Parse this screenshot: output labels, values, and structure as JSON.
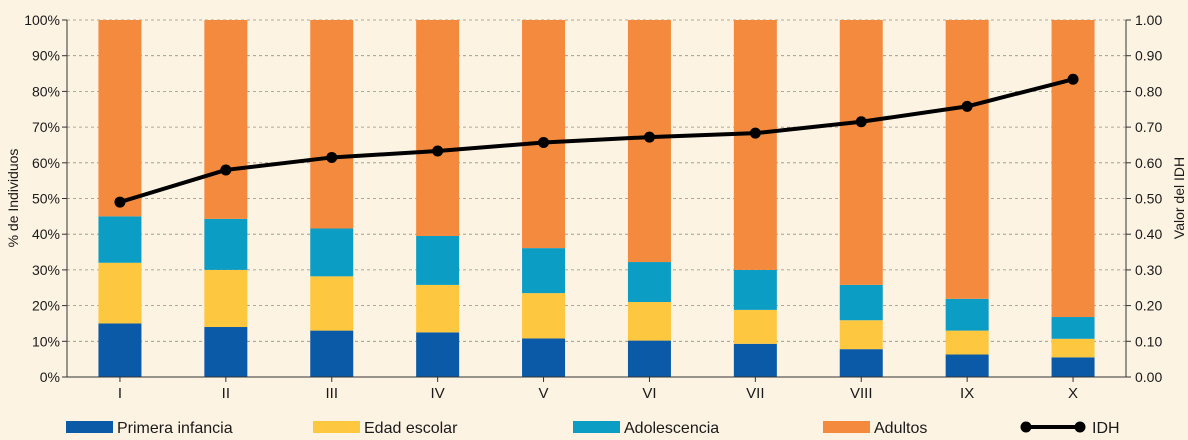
{
  "chart_data": {
    "type": "bar",
    "stacked": true,
    "categories": [
      "I",
      "II",
      "III",
      "IV",
      "V",
      "VI",
      "VII",
      "VIII",
      "IX",
      "X"
    ],
    "series": [
      {
        "name": "Primera infancia",
        "color": "#0a5aa8",
        "values": [
          15.0,
          14.0,
          13.0,
          12.5,
          10.8,
          10.2,
          9.3,
          7.8,
          6.3,
          5.5
        ]
      },
      {
        "name": "Edad escolar",
        "color": "#fdc840",
        "values": [
          17.0,
          16.0,
          15.2,
          13.3,
          12.7,
          10.8,
          9.5,
          8.1,
          6.7,
          5.2
        ]
      },
      {
        "name": "Adolescencia",
        "color": "#0c9dc4",
        "values": [
          13.0,
          14.3,
          13.4,
          13.7,
          12.6,
          11.2,
          11.2,
          9.9,
          8.9,
          6.1
        ]
      },
      {
        "name": "Adultos",
        "color": "#f38a3e",
        "values": [
          55.0,
          55.7,
          58.4,
          60.5,
          63.9,
          67.8,
          70.0,
          74.2,
          78.1,
          83.2
        ]
      }
    ],
    "line_series": {
      "name": "IDH",
      "axis": "right",
      "color": "#000000",
      "values": [
        0.49,
        0.58,
        0.615,
        0.633,
        0.657,
        0.672,
        0.683,
        0.715,
        0.758,
        0.834
      ]
    },
    "ylabel": "% de Individuos",
    "y2label": "Valor del IDH",
    "ylim": [
      0,
      100
    ],
    "y2lim": [
      0,
      1
    ],
    "yticks": [
      "0%",
      "10%",
      "20%",
      "30%",
      "40%",
      "50%",
      "60%",
      "70%",
      "80%",
      "90%",
      "100%"
    ],
    "y2ticks": [
      "0.00",
      "0.10",
      "0.20",
      "0.30",
      "0.40",
      "0.50",
      "0.60",
      "0.70",
      "0.80",
      "0.90",
      "1.00"
    ],
    "grid": "horizontal dashed",
    "legend": "bottom",
    "background": "#fdf3e3"
  }
}
